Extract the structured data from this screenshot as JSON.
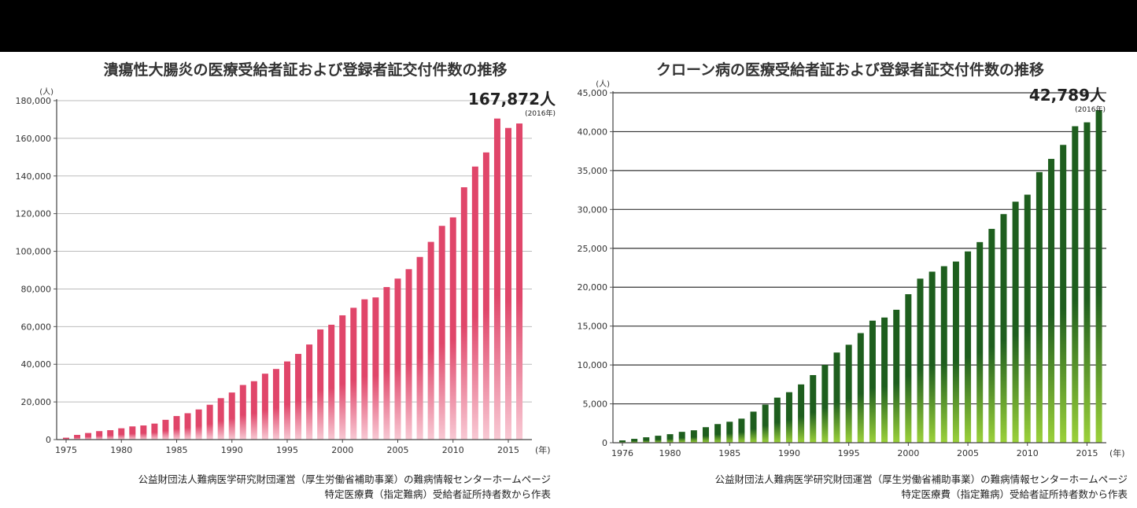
{
  "charts": [
    {
      "title": "潰瘍性大腸炎の医療受給者証および登録者証交付件数の推移",
      "y_unit": "(人)",
      "x_unit": "(年)",
      "callout_value": "167,872人",
      "callout_year": "(2016年)",
      "source_line1": "公益財団法人難病医学研究財団運営（厚生労働省補助事業）の難病情報センターホームページ",
      "source_line2": "特定医療費（指定難病）受給者証所持者数から作表"
    },
    {
      "title": "クローン病の医療受給者証および登録者証交付件数の推移",
      "y_unit": "(人)",
      "x_unit": "(年)",
      "callout_value": "42,789人",
      "callout_year": "(2016年)",
      "source_line1": "公益財団法人難病医学研究財団運営（厚生労働省補助事業）の難病情報センターホームページ",
      "source_line2": "特定医療費（指定難病）受給者証所持者数から作表"
    }
  ],
  "chart_data": [
    {
      "type": "bar",
      "x": [
        1975,
        1976,
        1977,
        1978,
        1979,
        1980,
        1981,
        1982,
        1983,
        1984,
        1985,
        1986,
        1987,
        1988,
        1989,
        1990,
        1991,
        1992,
        1993,
        1994,
        1995,
        1996,
        1997,
        1998,
        1999,
        2000,
        2001,
        2002,
        2003,
        2004,
        2005,
        2006,
        2007,
        2008,
        2009,
        2010,
        2011,
        2012,
        2013,
        2014,
        2015,
        2016
      ],
      "values": [
        1000,
        2500,
        3500,
        4500,
        5000,
        6000,
        7000,
        7500,
        8500,
        10500,
        12500,
        14000,
        16000,
        18500,
        22000,
        25000,
        29000,
        31000,
        35000,
        37500,
        41500,
        45500,
        50500,
        58500,
        61000,
        66000,
        70000,
        74500,
        75500,
        81000,
        85500,
        90500,
        97000,
        105000,
        113500,
        118000,
        134000,
        145000,
        152500,
        170500,
        165500,
        167872
      ],
      "ylim": [
        0,
        180000
      ],
      "yticks": [
        0,
        20000,
        40000,
        60000,
        80000,
        100000,
        120000,
        140000,
        160000,
        180000
      ],
      "ytick_labels": [
        "0",
        "20,000",
        "40,000",
        "60,000",
        "80,000",
        "100,000",
        "120,000",
        "140,000",
        "160,000",
        "180,000"
      ],
      "xtick_labels": [
        "1975",
        "1980",
        "1985",
        "1990",
        "1995",
        "2000",
        "2005",
        "2010",
        "2015"
      ],
      "grid": true,
      "color": "#e0466a",
      "color_light": "#f8c9d4"
    },
    {
      "type": "bar",
      "x": [
        1976,
        1977,
        1978,
        1979,
        1980,
        1981,
        1982,
        1983,
        1984,
        1985,
        1986,
        1987,
        1988,
        1989,
        1990,
        1991,
        1992,
        1993,
        1994,
        1995,
        1996,
        1997,
        1998,
        1999,
        2000,
        2001,
        2002,
        2003,
        2004,
        2005,
        2006,
        2007,
        2008,
        2009,
        2010,
        2011,
        2012,
        2013,
        2014,
        2015,
        2016
      ],
      "values": [
        300,
        500,
        700,
        900,
        1100,
        1400,
        1600,
        2000,
        2400,
        2700,
        3100,
        4000,
        4900,
        5800,
        6500,
        7500,
        8700,
        10000,
        11600,
        12600,
        14100,
        15700,
        16100,
        17100,
        19100,
        21100,
        22000,
        22700,
        23300,
        24600,
        25800,
        27500,
        29400,
        31000,
        31900,
        34800,
        36500,
        38300,
        40700,
        41200,
        42789
      ],
      "ylim": [
        0,
        45000
      ],
      "yticks": [
        0,
        5000,
        10000,
        15000,
        20000,
        25000,
        30000,
        35000,
        40000,
        45000
      ],
      "ytick_labels": [
        "0",
        "5,000",
        "10,000",
        "15,000",
        "20,000",
        "25,000",
        "30,000",
        "35,000",
        "40,000",
        "45,000"
      ],
      "xtick_labels": [
        "1976",
        "1980",
        "1985",
        "1990",
        "1995",
        "2000",
        "2005",
        "2010",
        "2015"
      ],
      "grid": true,
      "color": "#1e5e1e",
      "color_light": "#9bd13a"
    }
  ]
}
